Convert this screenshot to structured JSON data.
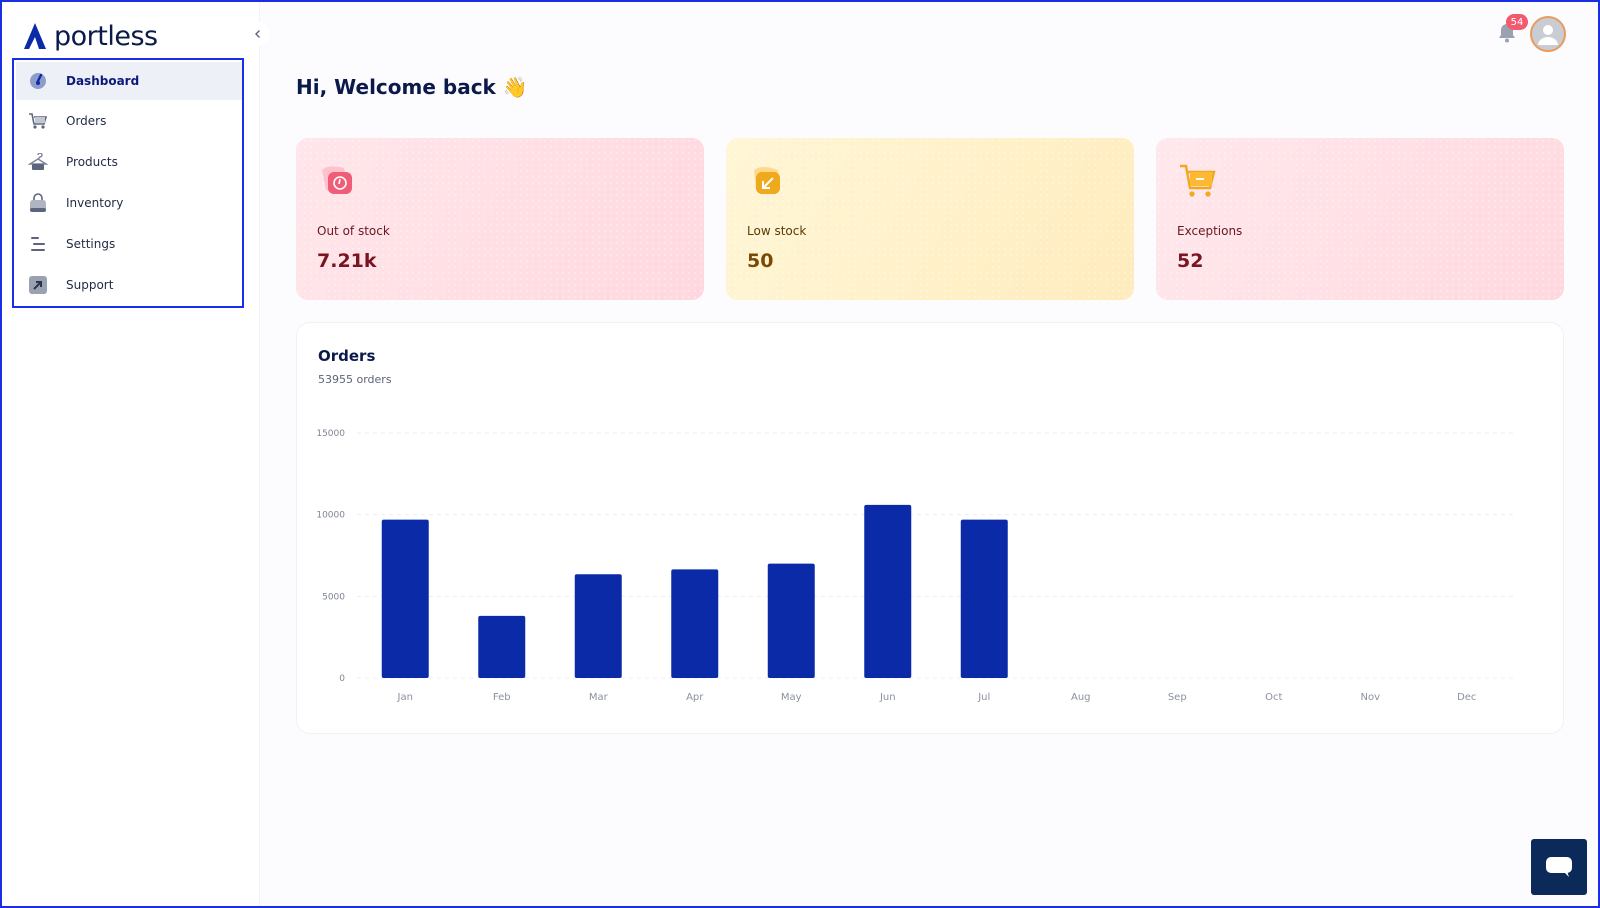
{
  "brand": {
    "name": "portless",
    "accent": "#0b2aa8"
  },
  "sidebar": {
    "items": [
      {
        "label": "Dashboard",
        "icon": "dashboard-gauge-icon",
        "active": true
      },
      {
        "label": "Orders",
        "icon": "cart-icon",
        "active": false
      },
      {
        "label": "Products",
        "icon": "hanger-icon",
        "active": false
      },
      {
        "label": "Inventory",
        "icon": "bag-icon",
        "active": false
      },
      {
        "label": "Settings",
        "icon": "settings-lines-icon",
        "active": false
      },
      {
        "label": "Support",
        "icon": "support-arrow-icon",
        "active": false
      }
    ]
  },
  "header": {
    "notifications_count": "54"
  },
  "main": {
    "greeting": "Hi, Welcome back 👋",
    "cards": [
      {
        "label": "Out of stock",
        "value": "7.21k",
        "color": "#ffdde3"
      },
      {
        "label": "Low stock",
        "value": "50",
        "color": "#fff1c7"
      },
      {
        "label": "Exceptions",
        "value": "52",
        "color": "#ffdde3"
      }
    ],
    "orders": {
      "title": "Orders",
      "subtitle": "53955 orders"
    }
  },
  "chart_data": {
    "type": "bar",
    "categories": [
      "Jan",
      "Feb",
      "Mar",
      "Apr",
      "May",
      "Jun",
      "Jul",
      "Aug",
      "Sep",
      "Oct",
      "Nov",
      "Dec"
    ],
    "values": [
      9700,
      3800,
      6350,
      6650,
      7000,
      10600,
      9700,
      0,
      0,
      0,
      0,
      0
    ],
    "yticks": [
      "0",
      "5000",
      "10000",
      "15000"
    ],
    "ylim": [
      0,
      15000
    ],
    "grid": true,
    "bar_color": "#0b2aa8"
  }
}
